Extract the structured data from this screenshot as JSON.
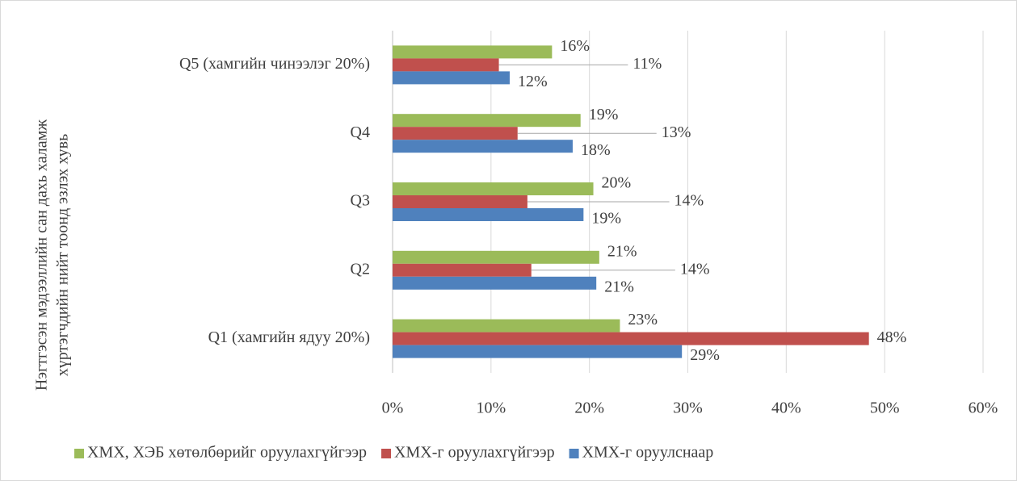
{
  "chart_data": {
    "type": "hbar",
    "ylabel": [
      "Нэгтгэсэн мэдээллийн сан дахь халамж",
      "хүртэгчдийн нийт тоонд эзлэх хувь"
    ],
    "categories": [
      "Q1 (хамгийн ядуу 20%)",
      "Q2",
      "Q3",
      "Q4",
      "Q5 (хамгийн чинээлэг 20%)"
    ],
    "series": [
      {
        "name": "ХМХ, ХЭБ хөтөлбөрийг оруулахгүйгээр",
        "color": "#9bbb59",
        "values": [
          23.1,
          21.0,
          20.4,
          19.1,
          16.2
        ],
        "value_labels": [
          "23%",
          "21%",
          "20%",
          "19%",
          "16%"
        ]
      },
      {
        "name": "ХМХ-г оруулахгүйгээр",
        "color": "#c0504d",
        "values": [
          48.4,
          14.1,
          13.7,
          12.7,
          10.8
        ],
        "value_labels": [
          "48%",
          "14%",
          "14%",
          "13%",
          "11%"
        ]
      },
      {
        "name": "ХМХ-г оруулснаар",
        "color": "#4f81bd",
        "values": [
          29.4,
          20.7,
          19.4,
          18.3,
          11.9
        ],
        "value_labels": [
          "29%",
          "21%",
          "19%",
          "18%",
          "12%"
        ]
      }
    ],
    "xlim": [
      0,
      60
    ],
    "xticks": [
      {
        "value": 0,
        "label": "0%"
      },
      {
        "value": 10,
        "label": "10%"
      },
      {
        "value": 20,
        "label": "20%"
      },
      {
        "value": 30,
        "label": "30%"
      },
      {
        "value": 40,
        "label": "40%"
      },
      {
        "value": 50,
        "label": "50%"
      },
      {
        "value": 60,
        "label": "60%"
      }
    ],
    "grid": true,
    "legend": "bottom"
  }
}
